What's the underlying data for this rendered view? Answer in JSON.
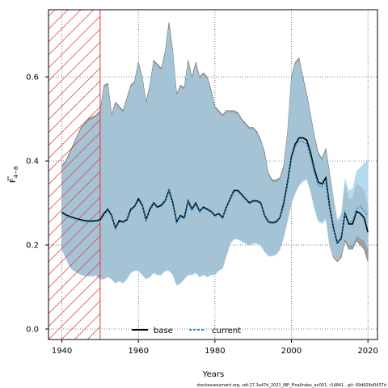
{
  "chart_data": {
    "type": "line",
    "ylabel_main": "F",
    "ylabel_sub": "4−8",
    "xlabel": "Years",
    "footer": "stockassessment.org, sdt:27.3a47d_2021_IBP_FinalIndex_an001, r14841 , git: 69d926d0437d",
    "xlim": [
      1936.5,
      2022.5
    ],
    "ylim": [
      -0.025,
      0.76
    ],
    "xticks": [
      1940,
      1960,
      1980,
      2000,
      2020
    ],
    "yticks": [
      0.0,
      0.2,
      0.4,
      0.6
    ],
    "grid": true,
    "legend_position": "bottom-center",
    "hatched_period": [
      1936.5,
      1950
    ],
    "colors": {
      "base_band": "#a0a0a0",
      "current_band": "#a8d4ea",
      "overlap_band": "#a4c4d6",
      "base_line": "#000000",
      "current_line": "#1e90d0",
      "hatch": "#e83030"
    },
    "x": [
      1940,
      1941,
      1942,
      1943,
      1944,
      1945,
      1946,
      1947,
      1948,
      1949,
      1950,
      1951,
      1952,
      1953,
      1954,
      1955,
      1956,
      1957,
      1958,
      1959,
      1960,
      1961,
      1962,
      1963,
      1964,
      1965,
      1966,
      1967,
      1968,
      1969,
      1970,
      1971,
      1972,
      1973,
      1974,
      1975,
      1976,
      1977,
      1978,
      1979,
      1980,
      1981,
      1982,
      1983,
      1984,
      1985,
      1986,
      1987,
      1988,
      1989,
      1990,
      1991,
      1992,
      1993,
      1994,
      1995,
      1996,
      1997,
      1998,
      1999,
      2000,
      2001,
      2002,
      2003,
      2004,
      2005,
      2006,
      2007,
      2008,
      2009,
      2010,
      2011,
      2012,
      2013,
      2014,
      2015,
      2016,
      2017,
      2018,
      2019,
      2020
    ],
    "series": [
      {
        "name": "base",
        "values": [
          0.278,
          0.272,
          0.268,
          0.265,
          0.262,
          0.26,
          0.258,
          0.257,
          0.257,
          0.258,
          0.26,
          0.275,
          0.285,
          0.27,
          0.24,
          0.258,
          0.255,
          0.26,
          0.285,
          0.292,
          0.31,
          0.295,
          0.26,
          0.285,
          0.3,
          0.29,
          0.295,
          0.305,
          0.33,
          0.3,
          0.255,
          0.27,
          0.265,
          0.305,
          0.285,
          0.3,
          0.28,
          0.29,
          0.285,
          0.28,
          0.27,
          0.275,
          0.265,
          0.29,
          0.31,
          0.33,
          0.33,
          0.32,
          0.31,
          0.3,
          0.305,
          0.305,
          0.3,
          0.27,
          0.255,
          0.253,
          0.255,
          0.265,
          0.3,
          0.35,
          0.41,
          0.44,
          0.455,
          0.455,
          0.45,
          0.42,
          0.38,
          0.35,
          0.345,
          0.36,
          0.29,
          0.24,
          0.205,
          0.215,
          0.275,
          0.25,
          0.25,
          0.28,
          0.275,
          0.265,
          0.23
        ],
        "lower": [
          0.19,
          0.17,
          0.15,
          0.14,
          0.135,
          0.13,
          0.128,
          0.127,
          0.127,
          0.128,
          0.12,
          0.12,
          0.125,
          0.12,
          0.11,
          0.115,
          0.11,
          0.12,
          0.135,
          0.14,
          0.14,
          0.13,
          0.12,
          0.125,
          0.135,
          0.13,
          0.13,
          0.14,
          0.14,
          0.13,
          0.105,
          0.11,
          0.12,
          0.13,
          0.13,
          0.135,
          0.125,
          0.13,
          0.125,
          0.13,
          0.13,
          0.14,
          0.145,
          0.175,
          0.205,
          0.215,
          0.215,
          0.21,
          0.205,
          0.2,
          0.205,
          0.205,
          0.2,
          0.185,
          0.175,
          0.175,
          0.178,
          0.19,
          0.22,
          0.26,
          0.3,
          0.325,
          0.345,
          0.355,
          0.36,
          0.33,
          0.29,
          0.26,
          0.255,
          0.265,
          0.2,
          0.17,
          0.16,
          0.17,
          0.21,
          0.19,
          0.19,
          0.21,
          0.2,
          0.19,
          0.16
        ],
        "upper": [
          0.39,
          0.4,
          0.42,
          0.44,
          0.46,
          0.48,
          0.49,
          0.5,
          0.505,
          0.51,
          0.52,
          0.58,
          0.585,
          0.51,
          0.54,
          0.53,
          0.52,
          0.55,
          0.58,
          0.59,
          0.635,
          0.6,
          0.54,
          0.58,
          0.64,
          0.63,
          0.62,
          0.66,
          0.73,
          0.66,
          0.56,
          0.58,
          0.575,
          0.64,
          0.6,
          0.635,
          0.6,
          0.61,
          0.6,
          0.57,
          0.53,
          0.52,
          0.51,
          0.52,
          0.52,
          0.52,
          0.515,
          0.5,
          0.49,
          0.48,
          0.48,
          0.47,
          0.45,
          0.42,
          0.37,
          0.355,
          0.355,
          0.36,
          0.39,
          0.47,
          0.6,
          0.635,
          0.645,
          0.6,
          0.56,
          0.51,
          0.46,
          0.42,
          0.405,
          0.43,
          0.37,
          0.31,
          0.255,
          0.265,
          0.345,
          0.31,
          0.31,
          0.345,
          0.34,
          0.33,
          0.29
        ]
      },
      {
        "name": "current",
        "values": [
          0.275,
          0.27,
          0.266,
          0.263,
          0.26,
          0.258,
          0.256,
          0.255,
          0.255,
          0.256,
          0.258,
          0.27,
          0.282,
          0.268,
          0.238,
          0.255,
          0.253,
          0.258,
          0.282,
          0.29,
          0.306,
          0.293,
          0.258,
          0.282,
          0.297,
          0.288,
          0.292,
          0.303,
          0.327,
          0.298,
          0.253,
          0.267,
          0.262,
          0.301,
          0.282,
          0.297,
          0.278,
          0.288,
          0.283,
          0.278,
          0.268,
          0.273,
          0.263,
          0.288,
          0.308,
          0.327,
          0.327,
          0.318,
          0.308,
          0.298,
          0.303,
          0.303,
          0.298,
          0.268,
          0.253,
          0.251,
          0.253,
          0.263,
          0.296,
          0.345,
          0.405,
          0.435,
          0.448,
          0.446,
          0.44,
          0.41,
          0.372,
          0.342,
          0.338,
          0.352,
          0.286,
          0.238,
          0.206,
          0.218,
          0.278,
          0.255,
          0.256,
          0.286,
          0.292,
          0.282,
          0.27
        ],
        "lower": [
          0.188,
          0.168,
          0.148,
          0.138,
          0.133,
          0.128,
          0.126,
          0.125,
          0.125,
          0.126,
          0.118,
          0.118,
          0.123,
          0.118,
          0.108,
          0.113,
          0.108,
          0.118,
          0.133,
          0.138,
          0.138,
          0.128,
          0.118,
          0.123,
          0.133,
          0.128,
          0.128,
          0.138,
          0.138,
          0.128,
          0.103,
          0.108,
          0.118,
          0.128,
          0.128,
          0.133,
          0.123,
          0.128,
          0.123,
          0.128,
          0.128,
          0.138,
          0.143,
          0.173,
          0.203,
          0.213,
          0.213,
          0.208,
          0.203,
          0.198,
          0.203,
          0.203,
          0.198,
          0.183,
          0.173,
          0.173,
          0.176,
          0.188,
          0.218,
          0.258,
          0.298,
          0.322,
          0.34,
          0.35,
          0.355,
          0.325,
          0.285,
          0.255,
          0.25,
          0.26,
          0.198,
          0.172,
          0.164,
          0.176,
          0.216,
          0.2,
          0.2,
          0.222,
          0.216,
          0.21,
          0.19
        ],
        "upper": [
          0.385,
          0.395,
          0.415,
          0.435,
          0.455,
          0.475,
          0.485,
          0.495,
          0.5,
          0.505,
          0.515,
          0.575,
          0.58,
          0.505,
          0.535,
          0.525,
          0.515,
          0.545,
          0.575,
          0.585,
          0.63,
          0.595,
          0.535,
          0.575,
          0.635,
          0.625,
          0.615,
          0.655,
          0.72,
          0.655,
          0.555,
          0.575,
          0.57,
          0.635,
          0.595,
          0.63,
          0.595,
          0.605,
          0.595,
          0.565,
          0.525,
          0.515,
          0.505,
          0.515,
          0.515,
          0.515,
          0.51,
          0.495,
          0.485,
          0.475,
          0.475,
          0.465,
          0.445,
          0.415,
          0.365,
          0.35,
          0.35,
          0.355,
          0.385,
          0.465,
          0.595,
          0.63,
          0.64,
          0.595,
          0.555,
          0.505,
          0.455,
          0.415,
          0.4,
          0.425,
          0.365,
          0.31,
          0.26,
          0.275,
          0.36,
          0.33,
          0.335,
          0.375,
          0.385,
          0.395,
          0.4
        ]
      }
    ]
  }
}
